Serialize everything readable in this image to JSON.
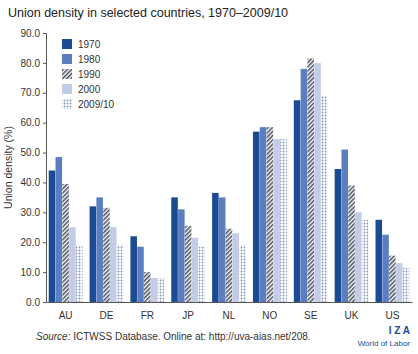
{
  "chart_data": {
    "type": "bar",
    "title": "Union density in selected countries, 1970–2009/10",
    "y_label": "Union density (%)",
    "source_label": "Source:",
    "source": "ICTWSS Database. Online at: http://uva-aias.net/208.",
    "logo": "I Z A",
    "logo_subtitle": "World of Labor",
    "categories": [
      "AU",
      "DE",
      "FR",
      "JP",
      "NL",
      "NO",
      "SE",
      "UK",
      "US"
    ],
    "series": [
      {
        "name": "1970",
        "color": "#1b4b94",
        "values": [
          44,
          32,
          22,
          35,
          36.5,
          57,
          67.5,
          44.5,
          27.5
        ]
      },
      {
        "name": "1980",
        "color": "#5b7ec0",
        "values": [
          48.5,
          35,
          18.5,
          31,
          35,
          58.5,
          78,
          51,
          22.5
        ]
      },
      {
        "name": "1990",
        "color": "#4d5563",
        "values": [
          39.5,
          31.5,
          10,
          25.5,
          24.5,
          58.5,
          81.5,
          39,
          15.5
        ]
      },
      {
        "name": "2000",
        "color": "#c3cce6",
        "values": [
          25,
          25,
          8,
          21.5,
          23,
          54.5,
          80,
          30,
          13
        ]
      },
      {
        "name": "2009/10",
        "color": "#8196bd",
        "values": [
          19,
          19,
          8,
          18.5,
          19,
          54.5,
          69,
          27.5,
          11.5
        ]
      }
    ],
    "ylim": [
      0,
      90
    ],
    "yticks": [
      {
        "value": 0,
        "label": "0.0"
      },
      {
        "value": 10,
        "label": "10.0"
      },
      {
        "value": 20,
        "label": "20.0"
      },
      {
        "value": 30,
        "label": "30.0"
      },
      {
        "value": 40,
        "label": "40.0"
      },
      {
        "value": 50,
        "label": "50.0"
      },
      {
        "value": 60,
        "label": "60.0"
      },
      {
        "value": 70,
        "label": "70.0"
      },
      {
        "value": 80,
        "label": "80.0"
      },
      {
        "value": 90,
        "label": "90.0"
      }
    ],
    "grid": false,
    "legend": "top-left"
  }
}
